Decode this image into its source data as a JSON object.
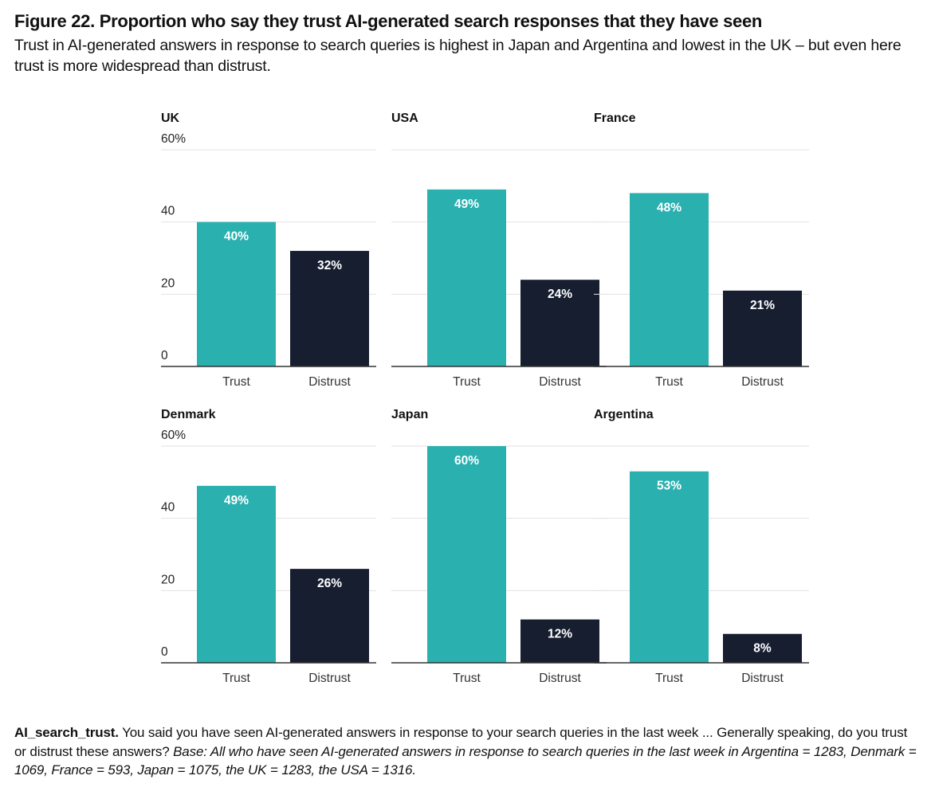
{
  "header": {
    "title": "Figure 22. Proportion who say they trust AI-generated search responses that they have seen",
    "subtitle": "Trust in AI-generated answers in response to search queries is highest in Japan and Argentina and lowest in the UK – but even here trust is more widespread than distrust."
  },
  "footnote": {
    "question_id": "AI_search_trust.",
    "question": " You said you have seen AI-generated answers in response to your search queries in the last week ... Generally speaking, do you trust or distrust these answers?  ",
    "base": "Base: All who have seen AI-generated answers in response to search queries in the last week in Argentina = 1283, Denmark = 1069, France = 593, Japan = 1075, the UK = 1283, the USA = 1316."
  },
  "colors": {
    "trust": "#2bb0b0",
    "distrust": "#161e30",
    "grid": "#e2e2e2",
    "axis": "#333333"
  },
  "chart_data": {
    "type": "bar",
    "title": "Figure 22. Proportion who say they trust AI-generated search responses that they have seen",
    "categories": [
      "Trust",
      "Distrust"
    ],
    "yticks": [
      "0",
      "20",
      "40",
      "60%"
    ],
    "ylim": [
      0,
      60
    ],
    "grid": true,
    "panels": [
      {
        "name": "UK",
        "values": [
          40,
          32
        ],
        "labels": [
          "40%",
          "32%"
        ],
        "show_ticks": true
      },
      {
        "name": "USA",
        "values": [
          49,
          24
        ],
        "labels": [
          "49%",
          "24%"
        ],
        "show_ticks": false
      },
      {
        "name": "France",
        "values": [
          48,
          21
        ],
        "labels": [
          "48%",
          "21%"
        ],
        "show_ticks": false
      },
      {
        "name": "Denmark",
        "values": [
          49,
          26
        ],
        "labels": [
          "49%",
          "26%"
        ],
        "show_ticks": true
      },
      {
        "name": "Japan",
        "values": [
          60,
          12
        ],
        "labels": [
          "60%",
          "12%"
        ],
        "show_ticks": false
      },
      {
        "name": "Argentina",
        "values": [
          53,
          8
        ],
        "labels": [
          "53%",
          "8%"
        ],
        "show_ticks": false
      }
    ]
  }
}
